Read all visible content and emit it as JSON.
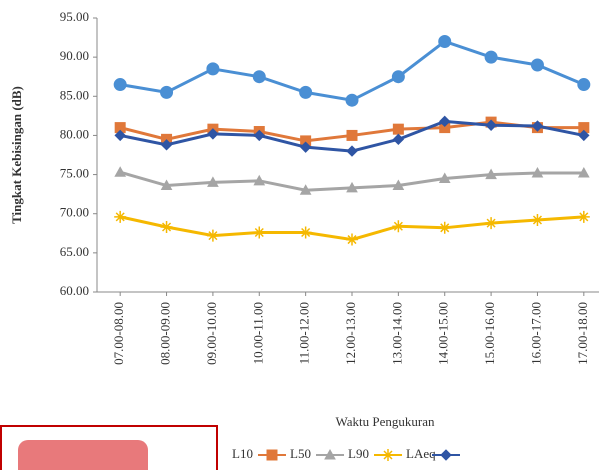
{
  "chart_data": {
    "type": "line",
    "y_label": "Tingkat Kebisingan (dB)",
    "x_label": "Waktu Pengukuran",
    "categories": [
      "07.00-08.00",
      "08.00-09.00",
      "09.00-10.00",
      "10.00-11.00",
      "11.00-12.00",
      "12.00-13.00",
      "13.00-14.00",
      "14.00-15.00",
      "15.00-16.00",
      "16.00-17.00",
      "17.00-18.00"
    ],
    "series": [
      {
        "color": "#4a8fd4",
        "marker": "circle",
        "values": [
          86.5,
          85.5,
          88.5,
          87.5,
          85.5,
          84.5,
          87.5,
          92,
          90,
          89,
          86.5
        ]
      },
      {
        "name": "L10",
        "color": "#e0783a",
        "marker": "square",
        "values": [
          81,
          79.5,
          80.8,
          80.5,
          79.3,
          80,
          80.8,
          81,
          81.7,
          81,
          81
        ]
      },
      {
        "name": "L50",
        "color": "#a5a5a5",
        "marker": "triangle",
        "values": [
          75.3,
          73.6,
          74,
          74.2,
          73,
          73.3,
          73.6,
          74.5,
          75,
          75.2,
          75.2
        ]
      },
      {
        "name": "L90",
        "color": "#f5b800",
        "marker": "star",
        "values": [
          69.6,
          68.3,
          67.2,
          67.6,
          67.6,
          66.7,
          68.4,
          68.2,
          68.8,
          69.2,
          69.6
        ]
      },
      {
        "name": "LAeq",
        "color": "#2f55a4",
        "marker": "diamond",
        "values": [
          80,
          78.8,
          80.2,
          80,
          78.5,
          78,
          79.5,
          81.8,
          81.3,
          81.2,
          80
        ]
      }
    ],
    "ylim": [
      60,
      95
    ],
    "yticks": [
      {
        "value": 60,
        "label": "60.00"
      },
      {
        "value": 65,
        "label": "65.00"
      },
      {
        "value": 70,
        "label": "70.00"
      },
      {
        "value": 75,
        "label": "75.00"
      },
      {
        "value": 80,
        "label": "80.00"
      },
      {
        "value": 85,
        "label": "85.00"
      },
      {
        "value": 90,
        "label": "90.00"
      },
      {
        "value": 95,
        "label": "95.00"
      }
    ]
  }
}
